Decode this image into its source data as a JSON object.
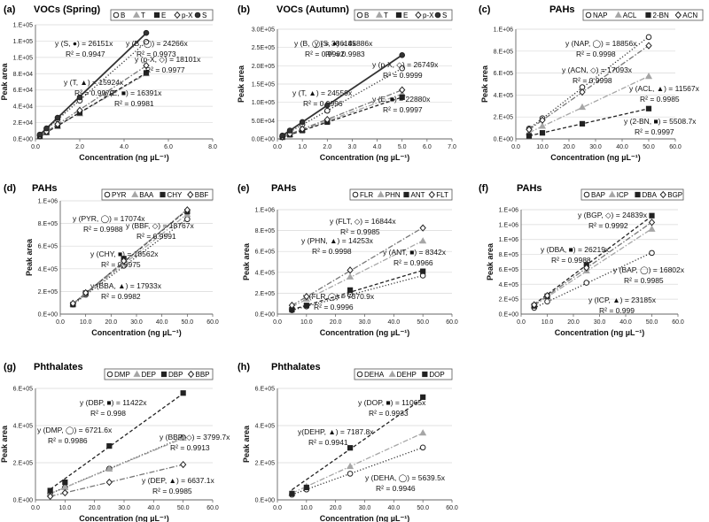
{
  "figure": {
    "axis_xlabel": "Concentration (ng µL⁻¹)",
    "axis_ylabel": "Peak area"
  },
  "styles": {
    "B": {
      "marker": "circle",
      "fill": "#ffffff",
      "color": "#333333",
      "dash": "1.2 2.2"
    },
    "T": {
      "marker": "triangle",
      "fill": "#a6a6a6",
      "color": "#a6a6a6",
      "dash": "6 2 1.5 2"
    },
    "E": {
      "marker": "square",
      "fill": "#222222",
      "color": "#222222",
      "dash": "4 2.5"
    },
    "p-X": {
      "marker": "diamond",
      "fill": "#ffffff",
      "color": "#777777",
      "dash": "6 2 1.5 2"
    },
    "S": {
      "marker": "circle",
      "fill": "#333333",
      "color": "#333333",
      "dash": ""
    }
  },
  "chart_data": [
    {
      "panel": "(a)",
      "title": "VOCs (Spring)",
      "type": "scatter",
      "xlabel": "Concentration (ng µL⁻¹)",
      "ylabel": "Peak area",
      "xlim": [
        0,
        8
      ],
      "xticks": [
        "0.0",
        "2.0",
        "4.0",
        "6.0",
        "8.0"
      ],
      "ylim": [
        0,
        140000
      ],
      "yticks": [
        "0.E+00",
        "2.E+04",
        "4.E+04",
        "6.E+04",
        "8.E+04",
        "1.E+05",
        "1.E+05",
        "1.E+05"
      ],
      "legend": [
        "B",
        "T",
        "E",
        "p-X",
        "S"
      ],
      "series": [
        {
          "name": "B",
          "style": "B",
          "x": [
            0.2,
            0.5,
            1,
            2,
            5
          ],
          "y": [
            5200,
            12000,
            24000,
            47000,
            119000
          ],
          "fit_label": "y (B, ◯) = 24266x",
          "r2_label": "R² = 0.9973"
        },
        {
          "name": "T",
          "style": "T",
          "x": [
            0.2,
            0.5,
            1,
            2,
            5
          ],
          "y": [
            3300,
            7800,
            15500,
            31000,
            80000
          ],
          "fit_label": "y (T, ▲) = 15924x",
          "r2_label": "R² = 0.9979"
        },
        {
          "name": "E",
          "style": "E",
          "x": [
            0.2,
            0.5,
            1,
            2,
            5
          ],
          "y": [
            3200,
            8100,
            16000,
            32000,
            81000
          ],
          "fit_label": "y (E, ■) = 16391x",
          "r2_label": "R² = 0.9981"
        },
        {
          "name": "p-X",
          "style": "p-X",
          "x": [
            0.2,
            0.5,
            1,
            2,
            5
          ],
          "y": [
            3600,
            8800,
            18000,
            35000,
            90000
          ],
          "fit_label": "y (p-X, ◇) = 18101x",
          "r2_label": "R² = 0.9977"
        },
        {
          "name": "S",
          "style": "S",
          "x": [
            0.2,
            0.5,
            1,
            2,
            5
          ],
          "y": [
            5300,
            13000,
            26000,
            51000,
            130000
          ],
          "fit_label": "y (S, ●) = 26151x",
          "r2_label": "R² = 0.9947"
        }
      ]
    },
    {
      "panel": "(b)",
      "title": "VOCs (Autumn)",
      "type": "scatter",
      "xlabel": "Concentration (ng µL⁻¹)",
      "ylabel": "Peak area",
      "xlim": [
        0,
        7
      ],
      "xticks": [
        "0.0",
        "1.0",
        "2.0",
        "3.0",
        "4.0",
        "5.0",
        "6.0",
        "7.0"
      ],
      "ylim": [
        0,
        300000
      ],
      "yticks": [
        "0.0E+00",
        "5.0E+04",
        "1.0E+05",
        "1.5E+05",
        "2.0E+05",
        "2.5E+05",
        "3.0E+05"
      ],
      "legend": [
        "B",
        "T",
        "E",
        "p-X",
        "S"
      ],
      "series": [
        {
          "name": "B",
          "style": "B",
          "x": [
            0.2,
            0.5,
            1,
            2,
            5
          ],
          "y": [
            7700,
            19000,
            39000,
            77000,
            193000
          ],
          "fit_label": "y (B, ◯) = 38618x",
          "r2_label": "R² = 0.9992"
        },
        {
          "name": "T",
          "style": "T",
          "x": [
            0.2,
            0.5,
            1,
            2,
            5
          ],
          "y": [
            4900,
            12300,
            24500,
            49000,
            123000
          ],
          "fit_label": "y (T, ▲) = 24559x",
          "r2_label": "R² = 0.9996"
        },
        {
          "name": "E",
          "style": "E",
          "x": [
            0.2,
            0.5,
            1,
            2,
            5
          ],
          "y": [
            4600,
            11400,
            23000,
            46000,
            114000
          ],
          "fit_label": "y (E, ■) = 22880x",
          "r2_label": "R² = 0.9997"
        },
        {
          "name": "p-X",
          "style": "p-X",
          "x": [
            0.2,
            0.5,
            1,
            2,
            5
          ],
          "y": [
            5300,
            13400,
            27000,
            53000,
            134000
          ],
          "fit_label": "y (p-X, ◇) = 26749x",
          "r2_label": "R² = 0.9999"
        },
        {
          "name": "S",
          "style": "S",
          "x": [
            0.2,
            0.5,
            1,
            2,
            5
          ],
          "y": [
            9200,
            23000,
            46000,
            92000,
            229000
          ],
          "fit_label": "y (S, ●) = 45886x",
          "r2_label": "R² = 0.9983"
        }
      ]
    },
    {
      "panel": "(c)",
      "title": "PAHs",
      "type": "scatter",
      "xlabel": "Concentration (ng µL⁻¹)",
      "ylabel": "Peak area",
      "xlim": [
        0,
        60
      ],
      "xticks": [
        "0.0",
        "10.0",
        "20.0",
        "30.0",
        "40.0",
        "50.0",
        "60.0"
      ],
      "ylim": [
        0,
        1000000
      ],
      "yticks": [
        "0.E+00",
        "2.E+05",
        "4.E+05",
        "6.E+05",
        "8.E+05",
        "1.E+06"
      ],
      "legend": [
        "NAP",
        "ACL",
        "2-BN",
        "ACN"
      ],
      "series": [
        {
          "name": "NAP",
          "style": "B",
          "x": [
            5,
            10,
            25,
            50
          ],
          "y": [
            94000,
            188000,
            471000,
            928000
          ],
          "fit_label": "y (NAP, ◯) = 18856x",
          "r2_label": "R² = 0.9998"
        },
        {
          "name": "ACL",
          "style": "T",
          "x": [
            5,
            10,
            25,
            50
          ],
          "y": [
            58000,
            116000,
            289000,
            570000
          ],
          "fit_label": "y (ACL, ▲) = 11567x",
          "r2_label": "R² = 0.9985"
        },
        {
          "name": "2-BN",
          "style": "E",
          "x": [
            5,
            10,
            25,
            50
          ],
          "y": [
            28000,
            55000,
            138000,
            276000
          ],
          "fit_label": "y (2-BN, ■) = 5508.7x",
          "r2_label": "R² = 0.9997"
        },
        {
          "name": "ACN",
          "style": "p-X",
          "x": [
            5,
            10,
            25,
            50
          ],
          "y": [
            85000,
            171000,
            427000,
            850000
          ],
          "fit_label": "y (ACN, ◇) = 17093x",
          "r2_label": "R² = 0.9998"
        }
      ]
    },
    {
      "panel": "(d)",
      "title": "PAHs",
      "type": "scatter",
      "xlabel": "Concentration (ng µL⁻¹)",
      "ylabel": "Peak area",
      "xlim": [
        0,
        60
      ],
      "xticks": [
        "0.0",
        "10.0",
        "20.0",
        "30.0",
        "40.0",
        "50.0",
        "60.0"
      ],
      "ylim": [
        0,
        1000000
      ],
      "yticks": [
        "0.E+00",
        "2.E+05",
        "4.E+05",
        "6.E+05",
        "8.E+05",
        "1.E+06"
      ],
      "legend": [
        "PYR",
        "BAA",
        "CHY",
        "BBF"
      ],
      "series": [
        {
          "name": "PYR",
          "style": "B",
          "x": [
            5,
            10,
            25,
            50
          ],
          "y": [
            85000,
            171000,
            427000,
            838000
          ],
          "fit_label": "y (PYR, ◯) = 17074x",
          "r2_label": "R² = 0.9988"
        },
        {
          "name": "BAA",
          "style": "T",
          "x": [
            5,
            10,
            25,
            50
          ],
          "y": [
            90000,
            179000,
            448000,
            880000
          ],
          "fit_label": "y (BBA, ▲) = 17933x",
          "r2_label": "R² = 0.9982"
        },
        {
          "name": "CHY",
          "style": "E",
          "x": [
            5,
            10,
            25,
            50
          ],
          "y": [
            84000,
            185000,
            490000,
            905000
          ],
          "fit_label": "y (CHY, ■) = 18562x",
          "r2_label": "R² = 0.9975"
        },
        {
          "name": "BBF",
          "style": "p-X",
          "x": [
            5,
            10,
            25,
            50
          ],
          "y": [
            94000,
            188000,
            469000,
            920000
          ],
          "fit_label": "y (BBF, ◇) = 18767x",
          "r2_label": "R² = 0.9991"
        }
      ]
    },
    {
      "panel": "(e)",
      "title": "PAHs",
      "type": "scatter",
      "xlabel": "Concentration (ng µL⁻¹)",
      "ylabel": "Peak area",
      "xlim": [
        0,
        60
      ],
      "xticks": [
        "0.0",
        "10.0",
        "20.0",
        "30.0",
        "40.0",
        "50.0",
        "60.0"
      ],
      "ylim": [
        0,
        1000000
      ],
      "yticks": [
        "0.E+00",
        "2.E+05",
        "4.E+05",
        "6.E+05",
        "8.E+05",
        "1.E+06"
      ],
      "legend": [
        "FLR",
        "PHN",
        "ANT",
        "FLT"
      ],
      "series": [
        {
          "name": "FLR",
          "style": "B",
          "x": [
            5,
            10,
            25,
            50
          ],
          "y": [
            37000,
            74000,
            184000,
            369000
          ],
          "fit_label": "y (FLR,◯) = 7370.9x",
          "r2_label": "R² = 0.9996"
        },
        {
          "name": "PHN",
          "style": "T",
          "x": [
            5,
            10,
            25,
            50
          ],
          "y": [
            71000,
            143000,
            356000,
            700000
          ],
          "fit_label": "y (PHN, ▲) = 14253x",
          "r2_label": "R² = 0.9998"
        },
        {
          "name": "ANT",
          "style": "E",
          "x": [
            5,
            10,
            25,
            50
          ],
          "y": [
            42000,
            83000,
            230000,
            410000
          ],
          "fit_label": "y (ANT, ■) = 8342x",
          "r2_label": "R² = 0.9966"
        },
        {
          "name": "FLT",
          "style": "p-X",
          "x": [
            5,
            10,
            25,
            50
          ],
          "y": [
            84000,
            168000,
            421000,
            825000
          ],
          "fit_label": "y (FLT, ◇) = 16844x",
          "r2_label": "R² = 0.9985"
        }
      ]
    },
    {
      "panel": "(f)",
      "title": "PAHs",
      "type": "scatter",
      "xlabel": "Concentration (ng µL⁻¹)",
      "ylabel": "Peak area",
      "xlim": [
        0,
        60
      ],
      "xticks": [
        "0.0",
        "10.0",
        "20.0",
        "30.0",
        "40.0",
        "50.0",
        "60.0"
      ],
      "ylim": [
        0,
        1400000
      ],
      "yticks": [
        "0.E+00",
        "2.E+05",
        "4.E+05",
        "6.E+05",
        "8.E+05",
        "1.E+06",
        "1.E+06",
        "1.E+06"
      ],
      "legend": [
        "BAP",
        "ICP",
        "DBA",
        "BGP"
      ],
      "series": [
        {
          "name": "BAP",
          "style": "B",
          "x": [
            5,
            10,
            25,
            50
          ],
          "y": [
            84000,
            168000,
            420000,
            820000
          ],
          "fit_label": "y (BAP, ◯) = 16802x",
          "r2_label": "R² = 0.9985"
        },
        {
          "name": "ICP",
          "style": "T",
          "x": [
            5,
            10,
            25,
            50
          ],
          "y": [
            116000,
            232000,
            580000,
            1140000
          ],
          "fit_label": "y (ICP, ▲) = 23185x",
          "r2_label": "R² = 0.999"
        },
        {
          "name": "DBA",
          "style": "E",
          "x": [
            5,
            10,
            25,
            50
          ],
          "y": [
            110000,
            240000,
            660000,
            1320000
          ],
          "fit_label": "y (DBA, ■) = 26219x",
          "r2_label": "R² = 0.9988"
        },
        {
          "name": "BGP",
          "style": "p-X",
          "x": [
            5,
            10,
            25,
            50
          ],
          "y": [
            124000,
            248000,
            621000,
            1230000
          ],
          "fit_label": "y (BGP, ◇) = 24839x",
          "r2_label": "R² = 0.9992"
        }
      ]
    },
    {
      "panel": "(g)",
      "title": "Phthalates",
      "type": "scatter",
      "xlabel": "Concentration (ng µL⁻¹)",
      "ylabel": "Peak area",
      "xlim": [
        0,
        60
      ],
      "xticks": [
        "0.0",
        "10.0",
        "20.0",
        "30.0",
        "40.0",
        "50.0",
        "60.0"
      ],
      "ylim": [
        0,
        600000
      ],
      "yticks": [
        "0.E+00",
        "2.E+05",
        "4.E+05",
        "6.E+05"
      ],
      "legend": [
        "DMP",
        "DEP",
        "DBP",
        "BBP"
      ],
      "series": [
        {
          "name": "DMP",
          "style": "B",
          "x": [
            5,
            10,
            25,
            50
          ],
          "y": [
            34000,
            67000,
            168000,
            336000
          ],
          "fit_label": "y (DMP, ◯) = 6721.6x",
          "r2_label": "R² = 0.9986"
        },
        {
          "name": "DEP",
          "style": "T",
          "x": [
            5,
            10,
            25,
            50
          ],
          "y": [
            33000,
            66000,
            166000,
            332000
          ],
          "fit_label": "y (DEP, ▲) = 6637.1x",
          "r2_label": "R² = 0.9985"
        },
        {
          "name": "DBP",
          "style": "E",
          "x": [
            5,
            10,
            25,
            50
          ],
          "y": [
            50000,
            95000,
            290000,
            575000
          ],
          "fit_label": "y (DBP, ■) = 11422x",
          "r2_label": "R² = 0.998"
        },
        {
          "name": "BBP",
          "style": "p-X",
          "x": [
            5,
            10,
            25,
            50
          ],
          "y": [
            19000,
            38000,
            95000,
            190000
          ],
          "fit_label": "y (BBP, ◇) = 3799.7x",
          "r2_label": "R² = 0.9913"
        }
      ]
    },
    {
      "panel": "(h)",
      "title": "Phthalates",
      "type": "scatter",
      "xlabel": "Concentration (ng µL⁻¹)",
      "ylabel": "Peak area",
      "xlim": [
        0,
        60
      ],
      "xticks": [
        "0.0",
        "10.0",
        "20.0",
        "30.0",
        "40.0",
        "50.0",
        "60.0"
      ],
      "ylim": [
        0,
        600000
      ],
      "yticks": [
        "0.E+00",
        "2.E+05",
        "4.E+05",
        "6.E+05"
      ],
      "legend": [
        "DEHA",
        "DEHP",
        "DOP"
      ],
      "series": [
        {
          "name": "DEHA",
          "style": "B",
          "x": [
            5,
            10,
            25,
            50
          ],
          "y": [
            28000,
            56000,
            141000,
            282000
          ],
          "fit_label": "y (DEHA, ◯) = 5639.5x",
          "r2_label": "R² = 0.9946"
        },
        {
          "name": "DEHP",
          "style": "T",
          "x": [
            5,
            10,
            25,
            50
          ],
          "y": [
            36000,
            72000,
            180000,
            360000
          ],
          "fit_label": "y(DEHP, ▲) = 7187.8x",
          "r2_label": "R² = 0.9941"
        },
        {
          "name": "DOP",
          "style": "E",
          "x": [
            5,
            10,
            25,
            50
          ],
          "y": [
            34000,
            67000,
            280000,
            553000
          ],
          "fit_label": "y (DOP, ■) = 11065x",
          "r2_label": "R² = 0.9933"
        }
      ]
    }
  ]
}
